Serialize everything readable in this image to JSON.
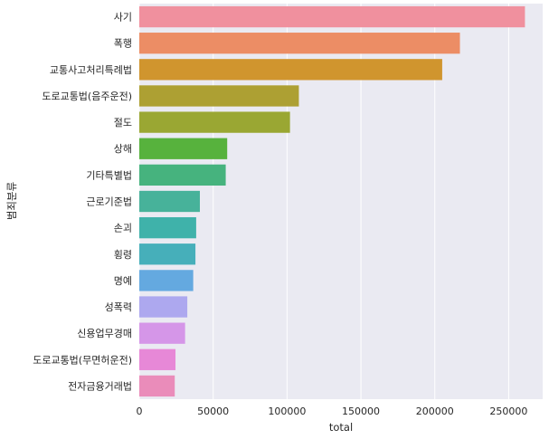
{
  "chart_data": {
    "type": "bar",
    "orientation": "horizontal",
    "xlabel": "total",
    "ylabel": "범죄분류",
    "xlim": [
      0,
      273000
    ],
    "xticks": [
      0,
      50000,
      100000,
      150000,
      200000,
      250000
    ],
    "grid": true,
    "categories": [
      "사기",
      "폭행",
      "교통사고처리특례법",
      "도로교통법(음주운전)",
      "절도",
      "상해",
      "기타특별법",
      "근로기준법",
      "손괴",
      "횡령",
      "명예",
      "성폭력",
      "신용업무경매",
      "도로교통법(무면허운전)",
      "전자금융거래법"
    ],
    "values": [
      261000,
      217000,
      205000,
      108000,
      102000,
      59500,
      58500,
      41000,
      38500,
      38000,
      36500,
      32500,
      31000,
      24500,
      24000
    ],
    "colors": [
      "#f0909e",
      "#ec8d65",
      "#d0952e",
      "#ada033",
      "#9aa733",
      "#57b23d",
      "#46b37e",
      "#47b29a",
      "#3fb2aa",
      "#46afba",
      "#64a9e0",
      "#ada8ef",
      "#d596e8",
      "#e788d7",
      "#ea8cba"
    ]
  }
}
